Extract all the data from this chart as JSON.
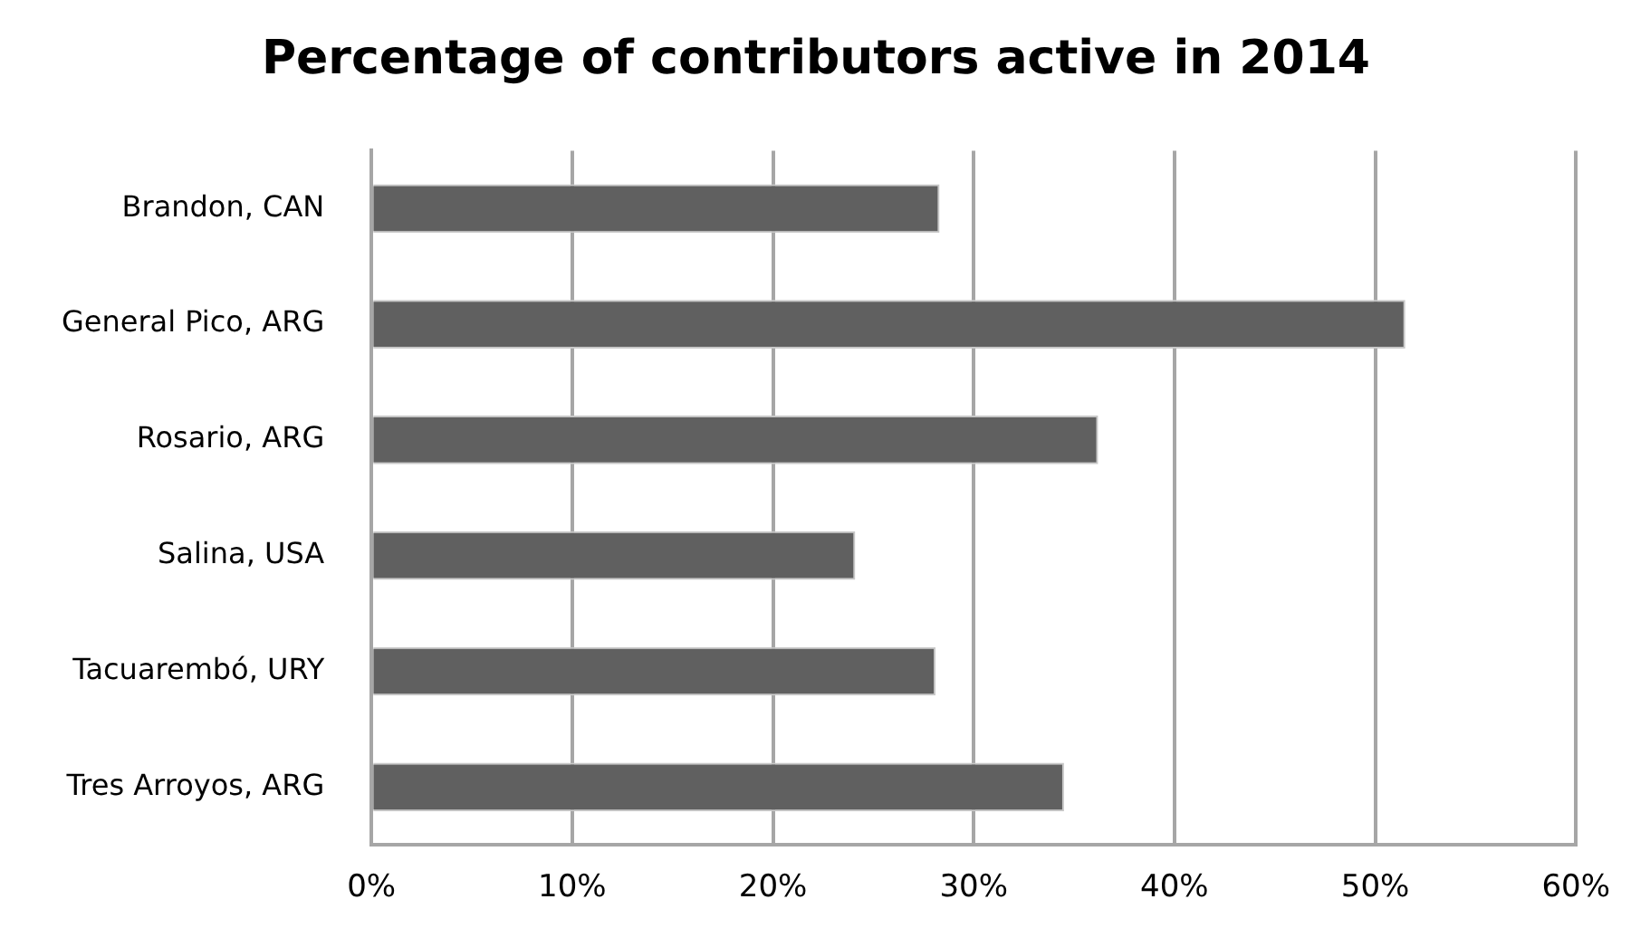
{
  "chart_data": {
    "type": "bar",
    "orientation": "horizontal",
    "title": "Percentage of contributors active in 2014",
    "categories": [
      "Brandon, CAN",
      "General Pico, ARG",
      "Rosario, ARG",
      "Salina, USA",
      "Tacuarembó, URY",
      "Tres Arroyos, ARG"
    ],
    "values": [
      28.3,
      51.5,
      36.2,
      24.1,
      28.1,
      34.5
    ],
    "color": "#606060",
    "xlim": [
      0,
      60
    ],
    "xticks": [
      {
        "value": 0,
        "label": "0%"
      },
      {
        "value": 10,
        "label": "10%"
      },
      {
        "value": 20,
        "label": "20%"
      },
      {
        "value": 30,
        "label": "30%"
      },
      {
        "value": 40,
        "label": "40%"
      },
      {
        "value": 50,
        "label": "50%"
      },
      {
        "value": 60,
        "label": "60%"
      }
    ],
    "grid": "x",
    "legend": false
  }
}
